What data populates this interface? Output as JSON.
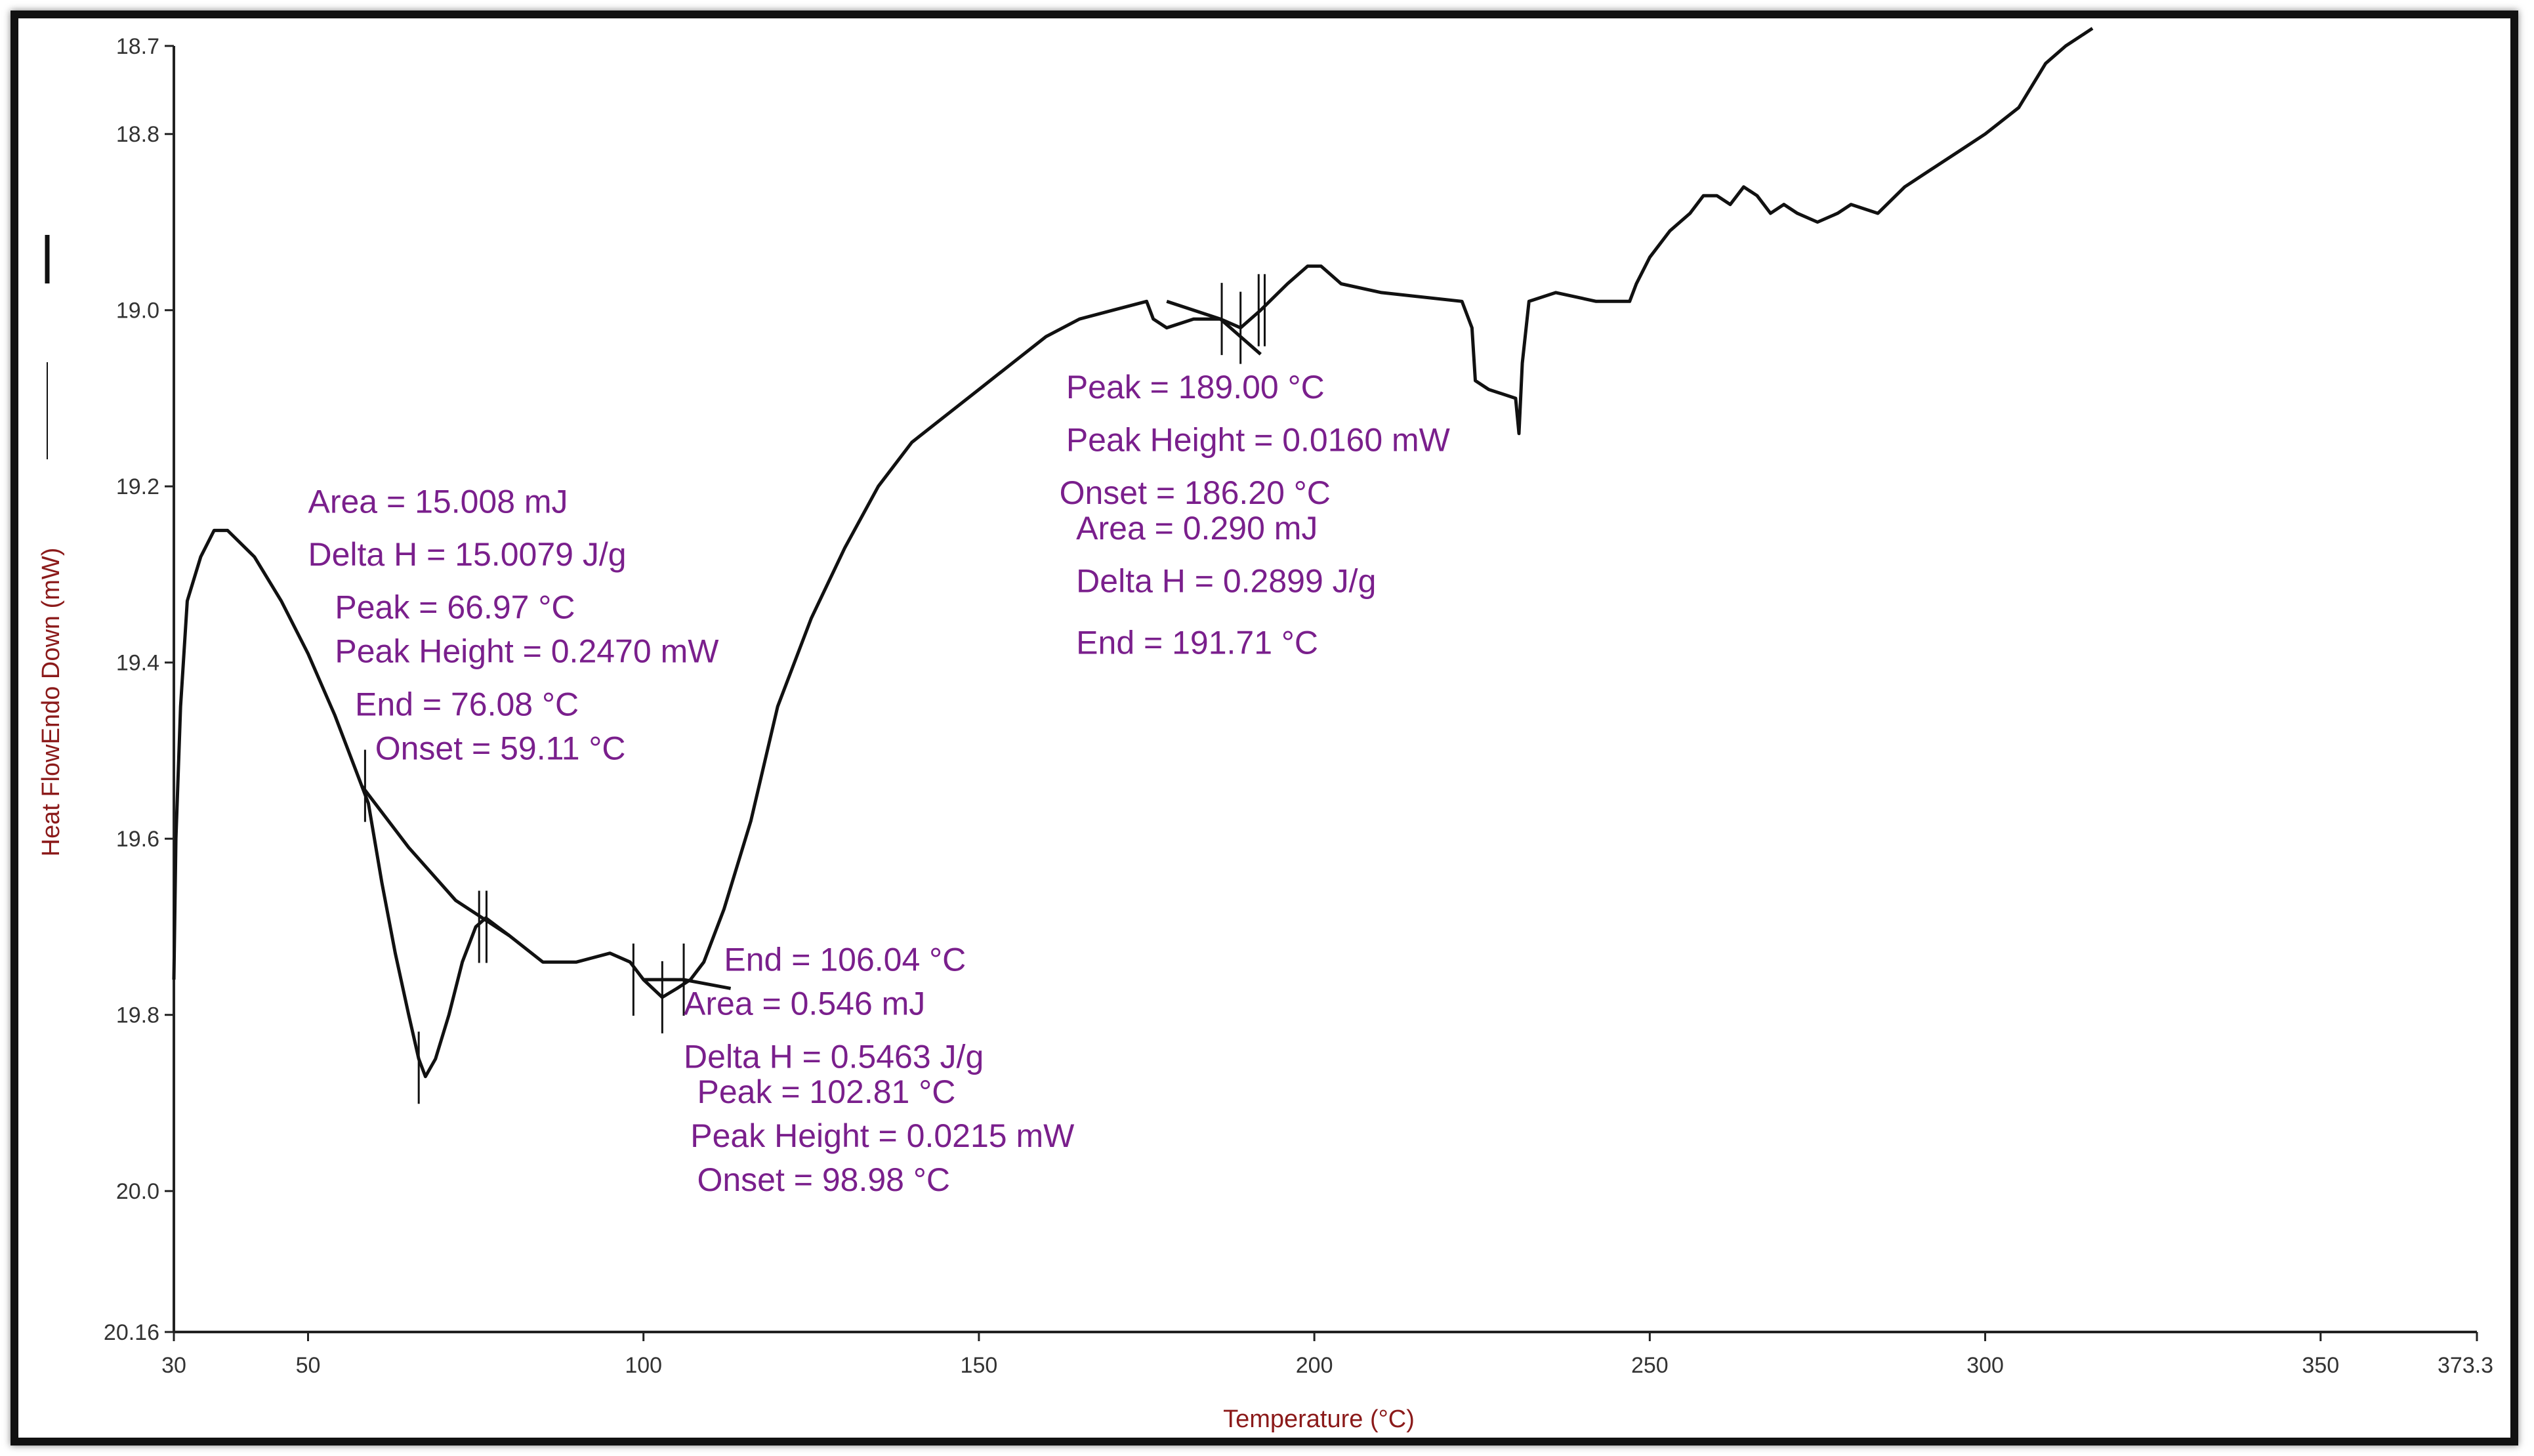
{
  "chart_data": {
    "type": "line",
    "title": "",
    "xlabel": "Temperature (°C)",
    "ylabel": "Heat FlowEndo Down (mW)",
    "xlim": [
      30,
      373.3
    ],
    "ylim": [
      18.7,
      20.16
    ],
    "y_inverted": true,
    "grid": false,
    "x_tick_labels": [
      "30",
      "50",
      "100",
      "150",
      "200",
      "250",
      "300",
      "350",
      "373.3"
    ],
    "x_tick_values": [
      30,
      50,
      100,
      150,
      200,
      250,
      300,
      350,
      373.3
    ],
    "y_tick_labels": [
      "18.7",
      "18.8",
      "19.0",
      "19.2",
      "19.4",
      "19.6",
      "19.8",
      "20.0",
      "20.16"
    ],
    "y_tick_values": [
      18.7,
      18.8,
      19.0,
      19.2,
      19.4,
      19.6,
      19.8,
      20.0,
      20.16
    ],
    "series": [
      {
        "color": "#111111",
        "points": [
          [
            30,
            19.76
          ],
          [
            30.3,
            19.6
          ],
          [
            31,
            19.45
          ],
          [
            32,
            19.33
          ],
          [
            34,
            19.28
          ],
          [
            36,
            19.25
          ],
          [
            38,
            19.25
          ],
          [
            42,
            19.28
          ],
          [
            46,
            19.33
          ],
          [
            50,
            19.39
          ],
          [
            54,
            19.46
          ],
          [
            57,
            19.52
          ],
          [
            59,
            19.56
          ],
          [
            61,
            19.65
          ],
          [
            63,
            19.73
          ],
          [
            65,
            19.8
          ],
          [
            66.5,
            19.85
          ],
          [
            67.5,
            19.87
          ],
          [
            69,
            19.85
          ],
          [
            71,
            19.8
          ],
          [
            73,
            19.74
          ],
          [
            75,
            19.7
          ],
          [
            76.5,
            19.69
          ],
          [
            80,
            19.71
          ],
          [
            85,
            19.74
          ],
          [
            90,
            19.74
          ],
          [
            95,
            19.73
          ],
          [
            98,
            19.74
          ],
          [
            100,
            19.76
          ],
          [
            102.8,
            19.78
          ],
          [
            105,
            19.77
          ],
          [
            107,
            19.76
          ],
          [
            109,
            19.74
          ],
          [
            112,
            19.68
          ],
          [
            116,
            19.58
          ],
          [
            120,
            19.45
          ],
          [
            125,
            19.35
          ],
          [
            130,
            19.27
          ],
          [
            135,
            19.2
          ],
          [
            140,
            19.15
          ],
          [
            145,
            19.12
          ],
          [
            150,
            19.09
          ],
          [
            155,
            19.06
          ],
          [
            160,
            19.03
          ],
          [
            165,
            19.01
          ],
          [
            170,
            19.0
          ],
          [
            175,
            18.99
          ],
          [
            176,
            19.01
          ],
          [
            178,
            19.02
          ],
          [
            182,
            19.01
          ],
          [
            186,
            19.01
          ],
          [
            189,
            19.02
          ],
          [
            192,
            19.0
          ],
          [
            196,
            18.97
          ],
          [
            199,
            18.95
          ],
          [
            201,
            18.95
          ],
          [
            204,
            18.97
          ],
          [
            210,
            18.98
          ],
          [
            222,
            18.99
          ],
          [
            223.5,
            19.02
          ],
          [
            224,
            19.08
          ],
          [
            226,
            19.09
          ],
          [
            230,
            19.1
          ],
          [
            230.5,
            19.14
          ],
          [
            231,
            19.06
          ],
          [
            232,
            18.99
          ],
          [
            236,
            18.98
          ],
          [
            242,
            18.99
          ],
          [
            247,
            18.99
          ],
          [
            248,
            18.97
          ],
          [
            250,
            18.94
          ],
          [
            253,
            18.91
          ],
          [
            256,
            18.89
          ],
          [
            258,
            18.87
          ],
          [
            260,
            18.87
          ],
          [
            262,
            18.88
          ],
          [
            264,
            18.86
          ],
          [
            266,
            18.87
          ],
          [
            268,
            18.89
          ],
          [
            270,
            18.88
          ],
          [
            272,
            18.89
          ],
          [
            275,
            18.9
          ],
          [
            278,
            18.89
          ],
          [
            280,
            18.88
          ],
          [
            284,
            18.89
          ],
          [
            288,
            18.86
          ],
          [
            292,
            18.84
          ],
          [
            296,
            18.82
          ],
          [
            300,
            18.8
          ],
          [
            305,
            18.77
          ],
          [
            309,
            18.72
          ],
          [
            312,
            18.7
          ],
          [
            316,
            18.68
          ]
        ]
      }
    ],
    "baselines": [
      [
        [
          58,
          19.54
        ],
        [
          65,
          19.61
        ],
        [
          72,
          19.67
        ],
        [
          80,
          19.71
        ]
      ],
      [
        [
          100,
          19.76
        ],
        [
          106,
          19.76
        ],
        [
          113,
          19.77
        ]
      ],
      [
        [
          178,
          18.99
        ],
        [
          186,
          19.01
        ],
        [
          192,
          19.05
        ]
      ]
    ],
    "event_ticks": [
      {
        "x": 58.5,
        "y": 19.54
      },
      {
        "x": 66.5,
        "y": 19.86
      },
      {
        "x": 75.5,
        "y": 19.7
      },
      {
        "x": 76.6,
        "y": 19.7
      },
      {
        "x": 98.5,
        "y": 19.76
      },
      {
        "x": 102.8,
        "y": 19.78
      },
      {
        "x": 106.0,
        "y": 19.76
      },
      {
        "x": 186.2,
        "y": 19.01
      },
      {
        "x": 189.0,
        "y": 19.02
      },
      {
        "x": 191.7,
        "y": 19.0
      },
      {
        "x": 192.6,
        "y": 19.0
      }
    ],
    "annotations": [
      {
        "group": "peak1",
        "text": "Area = 15.008 mJ",
        "x": 50,
        "y": 19.23
      },
      {
        "group": "peak1",
        "text": "Delta H = 15.0079 J/g",
        "x": 50,
        "y": 19.29
      },
      {
        "group": "peak1",
        "text": "Peak = 66.97 °C",
        "x": 54,
        "y": 19.35
      },
      {
        "group": "peak1",
        "text": "Peak Height = 0.2470 mW",
        "x": 54,
        "y": 19.4
      },
      {
        "group": "peak1",
        "text": "End = 76.08 °C",
        "x": 57,
        "y": 19.46
      },
      {
        "group": "peak1",
        "text": "Onset = 59.11 °C",
        "x": 60,
        "y": 19.51
      },
      {
        "group": "peak2",
        "text": "End = 106.04 °C",
        "x": 112,
        "y": 19.75
      },
      {
        "group": "peak2",
        "text": "Area = 0.546 mJ",
        "x": 106,
        "y": 19.8
      },
      {
        "group": "peak2",
        "text": "Delta H = 0.5463 J/g",
        "x": 106,
        "y": 19.86
      },
      {
        "group": "peak2",
        "text": "Peak = 102.81 °C",
        "x": 108,
        "y": 19.9
      },
      {
        "group": "peak2",
        "text": "Peak Height = 0.0215 mW",
        "x": 107,
        "y": 19.95
      },
      {
        "group": "peak2",
        "text": "Onset = 98.98 °C",
        "x": 108,
        "y": 20.0
      },
      {
        "group": "peak3",
        "text": "Peak = 189.00 °C",
        "x": 163,
        "y": 19.1
      },
      {
        "group": "peak3",
        "text": "Peak Height = 0.0160 mW",
        "x": 163,
        "y": 19.16
      },
      {
        "group": "peak3",
        "text": "Onset = 186.20 °C",
        "x": 162,
        "y": 19.22
      },
      {
        "group": "peak3",
        "text": "Area = 0.290 mJ",
        "x": 164.5,
        "y": 19.26
      },
      {
        "group": "peak3",
        "text": "Delta H = 0.2899 J/g",
        "x": 164.5,
        "y": 19.32
      },
      {
        "group": "peak3",
        "text": "End = 191.71 °C",
        "x": 164.5,
        "y": 19.39
      }
    ]
  }
}
